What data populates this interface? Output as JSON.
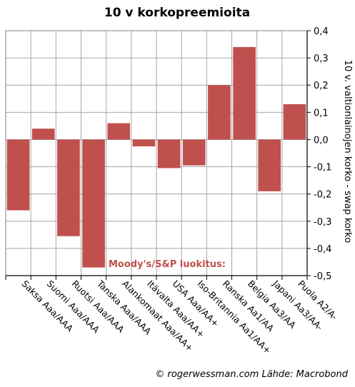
{
  "chart_data": {
    "type": "bar",
    "title": "10 v korkopreemioita",
    "ylabel": "10 v. valtionlainojen korko - swap korko",
    "annotation": "Moody's/S&P luokitus:",
    "credit": "© rogerwessman.com Lähde: Macrobond",
    "categories": [
      "Saksa Aaa/AAA",
      "Suomi Aaa/AAA",
      "Ruotsi Aaa/AAA",
      "Tanska Aaa/AAA",
      "Alankomaat Aaa/AA+",
      "Itävalta Aaa/AA+",
      "USA Aaa/AA+",
      "Iso-Britannia Aa1/AA+",
      "Ranska Aa1/AA",
      "Belgia Aa3/AA",
      "Japani Aa3/AA-",
      "Puola A2/A-"
    ],
    "values": [
      -0.26,
      0.04,
      -0.355,
      -0.47,
      0.06,
      -0.025,
      -0.105,
      -0.095,
      0.2,
      0.34,
      -0.19,
      0.13
    ],
    "ylim": [
      -0.5,
      0.4
    ],
    "yticks": [
      0.4,
      0.3,
      0.2,
      0.1,
      0.0,
      -0.1,
      -0.2,
      -0.3,
      -0.4,
      -0.5
    ],
    "ytick_labels": [
      "0,4",
      "0,3",
      "0,2",
      "0,1",
      "0,0",
      "-0,1",
      "-0,2",
      "-0,3",
      "-0,4",
      "-0,5"
    ],
    "yaxis_side": "right",
    "grid": true,
    "bar_color": "#c0504d"
  }
}
